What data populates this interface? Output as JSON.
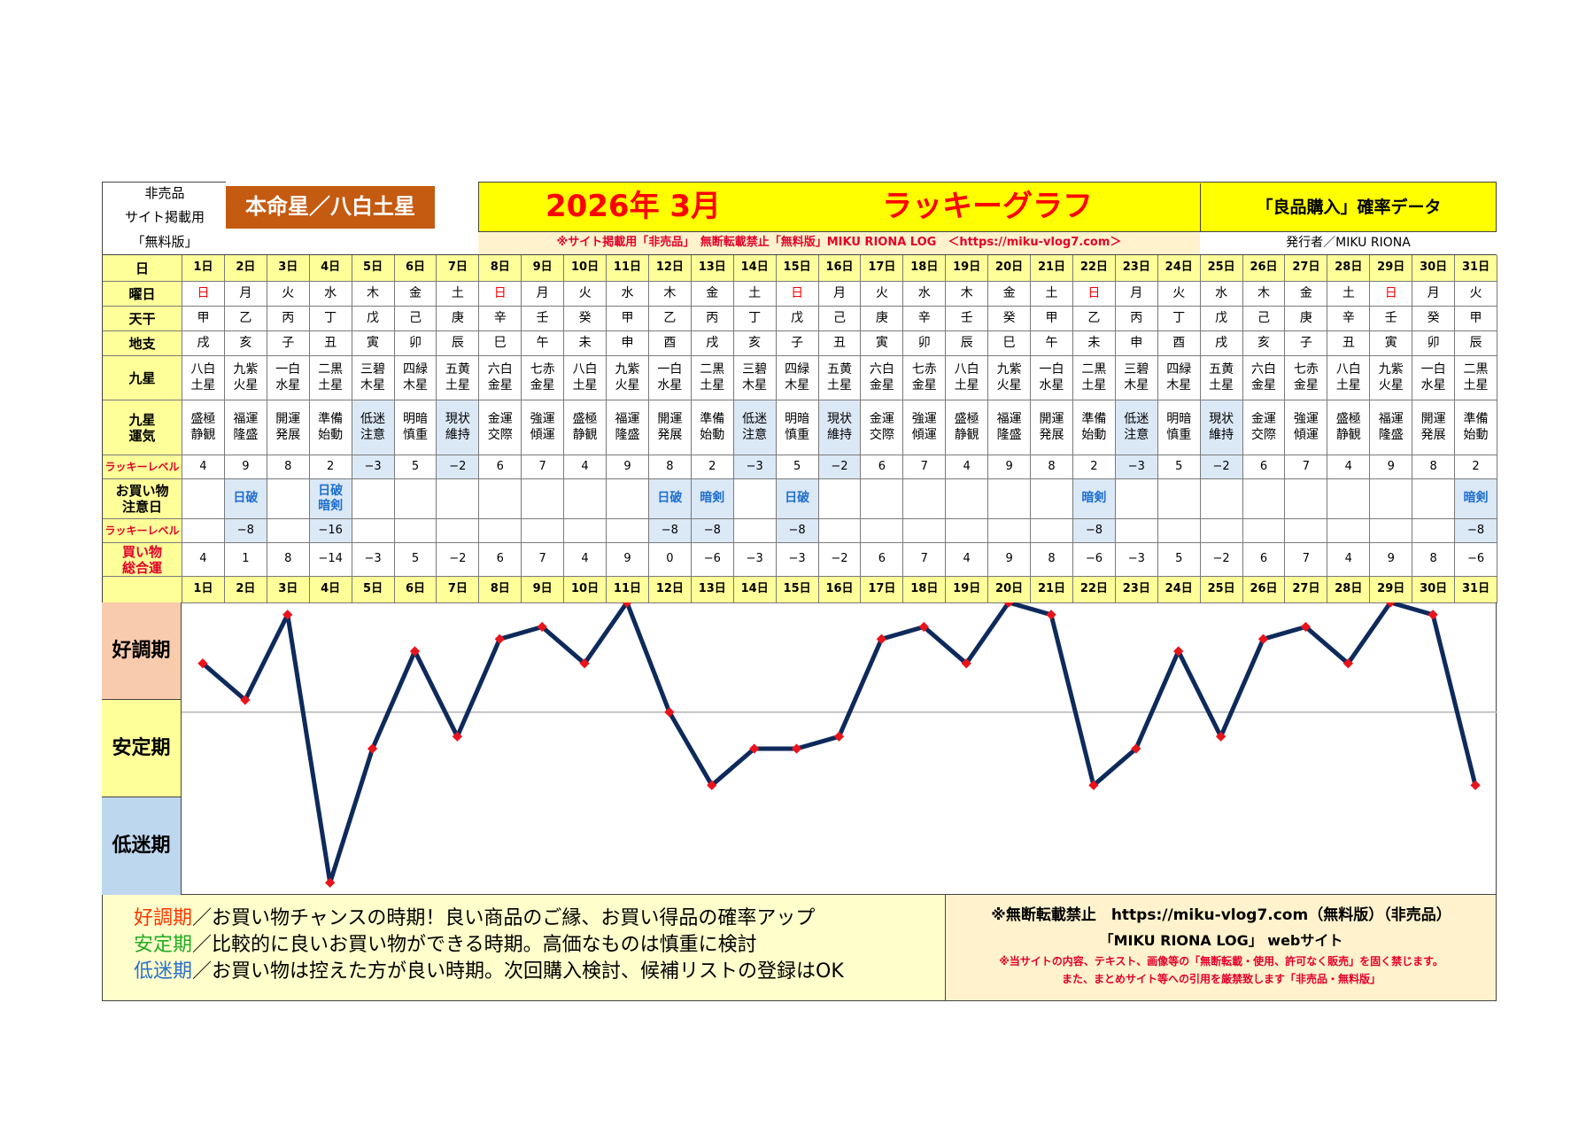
{
  "header": {
    "left_notes": [
      "非売品",
      "サイト掲載用",
      "「無料版」"
    ],
    "honmei": "本命星／八白土星",
    "title_month": "2026年 3月",
    "title_graph": "ラッキーグラフ",
    "data_title": "「良品購入」確率データ",
    "notice": "※サイト掲載用「非売品」　無断転載禁止「無料版」MIKU RIONA LOG　＜https://miku-vlog7.com＞",
    "publisher": "発行者／MIKU RIONA"
  },
  "row_labels": {
    "day": "日",
    "weekday": "曜日",
    "tenkan": "天干",
    "chishi": "地支",
    "kyusei": "九星",
    "kyusei_unki": "九星\n運気",
    "lucky_level": "ラッキーレベル",
    "caution": "お買い物\n注意日",
    "lucky_level2": "ラッキーレベル",
    "total": "買い物\n総合運"
  },
  "days": [
    "1日",
    "2日",
    "3日",
    "4日",
    "5日",
    "6日",
    "7日",
    "8日",
    "9日",
    "10日",
    "11日",
    "12日",
    "13日",
    "14日",
    "15日",
    "16日",
    "17日",
    "18日",
    "19日",
    "20日",
    "21日",
    "22日",
    "23日",
    "24日",
    "25日",
    "26日",
    "27日",
    "28日",
    "29日",
    "30日",
    "31日"
  ],
  "weekdays": [
    "日",
    "月",
    "火",
    "水",
    "木",
    "金",
    "土",
    "日",
    "月",
    "火",
    "水",
    "木",
    "金",
    "土",
    "日",
    "月",
    "火",
    "水",
    "木",
    "金",
    "土",
    "日",
    "月",
    "火",
    "水",
    "木",
    "金",
    "土",
    "日",
    "月",
    "火"
  ],
  "tenkan": [
    "甲",
    "乙",
    "丙",
    "丁",
    "戊",
    "己",
    "庚",
    "辛",
    "壬",
    "癸",
    "甲",
    "乙",
    "丙",
    "丁",
    "戊",
    "己",
    "庚",
    "辛",
    "壬",
    "癸",
    "甲",
    "乙",
    "丙",
    "丁",
    "戊",
    "己",
    "庚",
    "辛",
    "壬",
    "癸",
    "甲"
  ],
  "chishi": [
    "戌",
    "亥",
    "子",
    "丑",
    "寅",
    "卯",
    "辰",
    "巳",
    "午",
    "未",
    "申",
    "酉",
    "戌",
    "亥",
    "子",
    "丑",
    "寅",
    "卯",
    "辰",
    "巳",
    "午",
    "未",
    "申",
    "酉",
    "戌",
    "亥",
    "子",
    "丑",
    "寅",
    "卯",
    "辰"
  ],
  "kyusei": [
    "八白\n土星",
    "九紫\n火星",
    "一白\n水星",
    "二黒\n土星",
    "三碧\n木星",
    "四緑\n木星",
    "五黄\n土星",
    "六白\n金星",
    "七赤\n金星",
    "八白\n土星",
    "九紫\n火星",
    "一白\n水星",
    "二黒\n土星",
    "三碧\n木星",
    "四緑\n木星",
    "五黄\n土星",
    "六白\n金星",
    "七赤\n金星",
    "八白\n土星",
    "九紫\n火星",
    "一白\n水星",
    "二黒\n土星",
    "三碧\n木星",
    "四緑\n木星",
    "五黄\n土星",
    "六白\n金星",
    "七赤\n金星",
    "八白\n土星",
    "九紫\n火星",
    "一白\n水星",
    "二黒\n土星"
  ],
  "unki": [
    "盛極\n静観",
    "福運\n隆盛",
    "開運\n発展",
    "準備\n始動",
    "低迷\n注意",
    "明暗\n慎重",
    "現状\n維持",
    "金運\n交際",
    "強運\n傾運",
    "盛極\n静観",
    "福運\n隆盛",
    "開運\n発展",
    "準備\n始動",
    "低迷\n注意",
    "明暗\n慎重",
    "現状\n維持",
    "金運\n交際",
    "強運\n傾運",
    "盛極\n静観",
    "福運\n隆盛",
    "開運\n発展",
    "準備\n始動",
    "低迷\n注意",
    "明暗\n慎重",
    "現状\n維持",
    "金運\n交際",
    "強運\n傾運",
    "盛極\n静観",
    "福運\n隆盛",
    "開運\n発展",
    "準備\n始動"
  ],
  "lucky_level": [
    "4",
    "9",
    "8",
    "2",
    "−3",
    "5",
    "−2",
    "6",
    "7",
    "4",
    "9",
    "8",
    "2",
    "−3",
    "5",
    "−2",
    "6",
    "7",
    "4",
    "9",
    "8",
    "2",
    "−3",
    "5",
    "−2",
    "6",
    "7",
    "4",
    "9",
    "8",
    "2"
  ],
  "caution": [
    "",
    "日破",
    "",
    "日破\n暗剣",
    "",
    "",
    "",
    "",
    "",
    "",
    "",
    "日破",
    "暗剣",
    "",
    "日破",
    "",
    "",
    "",
    "",
    "",
    "",
    "暗剣",
    "",
    "",
    "",
    "",
    "",
    "",
    "",
    "",
    "暗剣"
  ],
  "lucky_level2": [
    "",
    "−8",
    "",
    "−16",
    "",
    "",
    "",
    "",
    "",
    "",
    "",
    "−8",
    "−8",
    "",
    "−8",
    "",
    "",
    "",
    "",
    "",
    "",
    "−8",
    "",
    "",
    "",
    "",
    "",
    "",
    "",
    "",
    "−8"
  ],
  "total": [
    "4",
    "1",
    "8",
    "−14",
    "−3",
    "5",
    "−2",
    "6",
    "7",
    "4",
    "9",
    "0",
    "−6",
    "−3",
    "−3",
    "−2",
    "6",
    "7",
    "4",
    "9",
    "8",
    "−6",
    "−3",
    "5",
    "−2",
    "6",
    "7",
    "4",
    "9",
    "8",
    "−6"
  ],
  "periods": {
    "good": "好調期",
    "stable": "安定期",
    "low": "低迷期"
  },
  "chart_data": {
    "type": "line",
    "x": [
      "1日",
      "2日",
      "3日",
      "4日",
      "5日",
      "6日",
      "7日",
      "8日",
      "9日",
      "10日",
      "11日",
      "12日",
      "13日",
      "14日",
      "15日",
      "16日",
      "17日",
      "18日",
      "19日",
      "20日",
      "21日",
      "22日",
      "23日",
      "24日",
      "25日",
      "26日",
      "27日",
      "28日",
      "29日",
      "30日",
      "31日"
    ],
    "series": [
      {
        "values": [
          4,
          1,
          8,
          -14,
          -3,
          5,
          -2,
          6,
          7,
          4,
          9,
          0,
          -6,
          -3,
          -3,
          -2,
          6,
          7,
          4,
          9,
          8,
          -6,
          -3,
          5,
          -2,
          6,
          7,
          4,
          9,
          8,
          -6
        ]
      }
    ],
    "ylim": [
      -15,
      9
    ],
    "reference_line": 0,
    "line_color": "#0e2a5c",
    "marker_color": "#e8141c"
  },
  "footer": {
    "legend": [
      {
        "label": "好調期",
        "text": "／お買い物チャンスの時期！良い商品のご縁、お買い得品の確率アップ"
      },
      {
        "label": "安定期",
        "text": "／比較的に良いお買い物ができる時期。高価なものは慎重に検討"
      },
      {
        "label": "低迷期",
        "text": "／お買い物は控えた方が良い時期。次回購入検討、候補リストの登録はOK"
      }
    ],
    "right_line1": "※無断転載禁止　https://miku-vlog7.com（無料版）（非売品）",
    "right_line2": "「MIKU RIONA LOG」 webサイト",
    "right_line3": "※当サイトの内容、テキスト、画像等の「無断転載・使用、許可なく販売」を固く禁じます。",
    "right_line4": "また、まとめサイト等への引用を厳禁致します「非売品・無料版」"
  },
  "colors": {
    "yellow": "#ffff99",
    "honmei_bg": "#c55a11",
    "good_bg": "#f8cbad",
    "stable_bg": "#ffff99",
    "low_bg": "#bdd7ee",
    "footer_bg": "#ffffcc",
    "footer_right_bg": "#fff2cc"
  }
}
